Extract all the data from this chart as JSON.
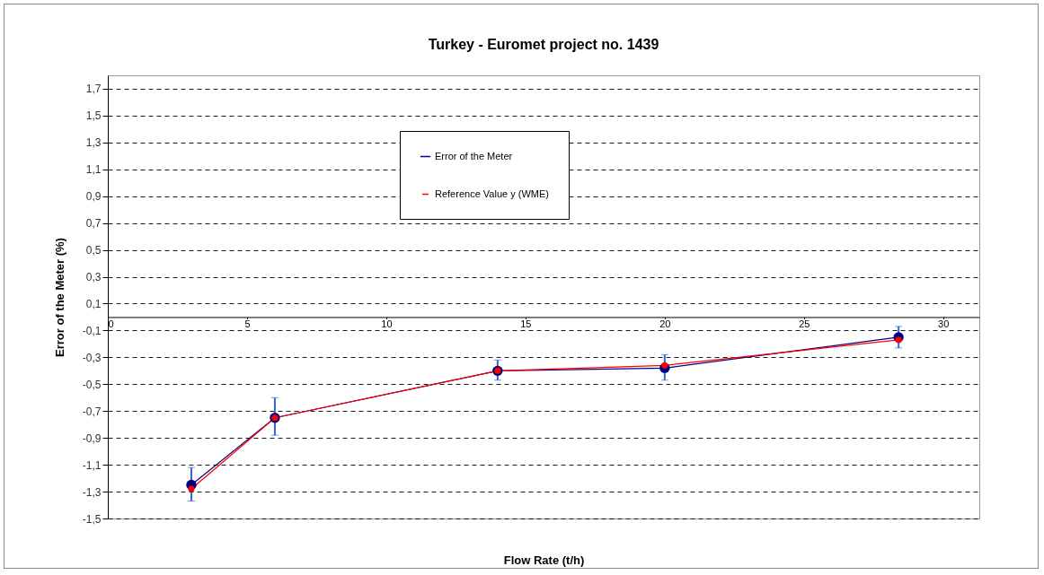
{
  "chart_data": {
    "type": "line",
    "title": "Turkey - Euromet project no. 1439",
    "xlabel": "Flow Rate (t/h)",
    "ylabel": "Error of the Meter (%)",
    "x": [
      3,
      6,
      14,
      20,
      28.4
    ],
    "series": [
      {
        "name": "Error of the Meter",
        "color": "#000080",
        "values": [
          -1.25,
          -0.75,
          -0.4,
          -0.38,
          -0.15
        ],
        "errors": [
          [
            -1.37,
            -1.12
          ],
          [
            -0.88,
            -0.6
          ],
          [
            -0.47,
            -0.32
          ],
          [
            -0.47,
            -0.28
          ],
          [
            -0.23,
            -0.07
          ]
        ]
      },
      {
        "name": "Reference Value y (WME)",
        "color": "#ff0000",
        "values": [
          -1.28,
          -0.75,
          -0.4,
          -0.36,
          -0.17
        ]
      }
    ],
    "xlim": [
      0,
      31.3
    ],
    "xticks": [
      0,
      5,
      10,
      15,
      20,
      25,
      30
    ],
    "ylim": [
      -1.5,
      1.8
    ],
    "yticks": [
      {
        "value": -1.5,
        "label": "-1,5"
      },
      {
        "value": -1.3,
        "label": "-1,3"
      },
      {
        "value": -1.1,
        "label": "-1,1"
      },
      {
        "value": -0.9,
        "label": "-0,9"
      },
      {
        "value": -0.7,
        "label": "-0,7"
      },
      {
        "value": -0.5,
        "label": "-0,5"
      },
      {
        "value": -0.3,
        "label": "-0,3"
      },
      {
        "value": -0.1,
        "label": "-0,1"
      },
      {
        "value": 0.1,
        "label": "0,1"
      },
      {
        "value": 0.3,
        "label": "0,3"
      },
      {
        "value": 0.5,
        "label": "0,5"
      },
      {
        "value": 0.7,
        "label": "0,7"
      },
      {
        "value": 0.9,
        "label": "0,9"
      },
      {
        "value": 1.1,
        "label": "1,1"
      },
      {
        "value": 1.3,
        "label": "1,3"
      },
      {
        "value": 1.5,
        "label": "1,5"
      },
      {
        "value": 1.7,
        "label": "1,7"
      }
    ],
    "grid": "y",
    "legend": "top",
    "marker": "circle",
    "line_style": "solid"
  }
}
